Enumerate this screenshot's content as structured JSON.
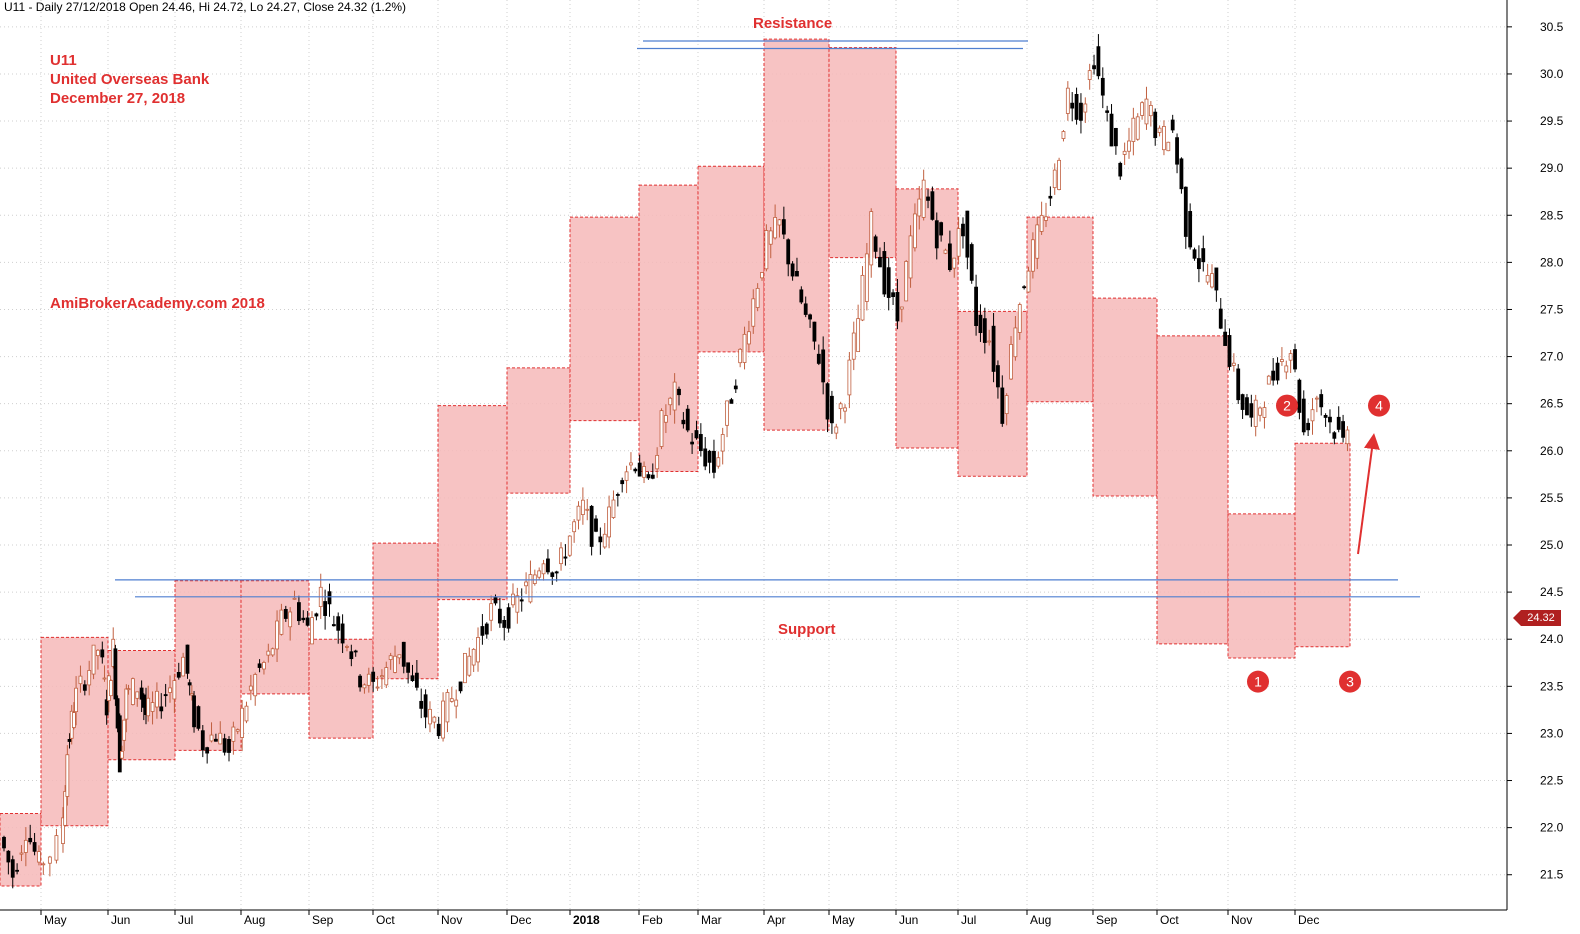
{
  "header": {
    "info": "U11 - Daily 27/12/2018 Open 24.46, Hi 24.72, Lo 24.27, Close 24.32 (1.2%)"
  },
  "title": {
    "symbol": "U11",
    "company": "United Overseas Bank",
    "date": "December 27, 2018"
  },
  "watermark": "AmiBrokerAcademy.com  2018",
  "labels": {
    "resistance": "Resistance",
    "support": "Support"
  },
  "last_price": "24.32",
  "markers": [
    {
      "num": "1",
      "month_pos": 19.2,
      "price": 23.55
    },
    {
      "num": "2",
      "month_pos": 19.8,
      "price": 26.48
    },
    {
      "num": "3",
      "month_pos": 20.6,
      "price": 23.55
    },
    {
      "num": "4",
      "month_pos": 21.0,
      "price": 26.48
    }
  ],
  "colors": {
    "box_fill": "#f6b9b9",
    "box_border": "#e03030",
    "line": "#4f7fd0",
    "up_candle": "#c06040",
    "down_candle": "#000000",
    "accent": "#e03030"
  },
  "chart_data": {
    "type": "candlestick",
    "ylim": [
      21.2,
      30.7
    ],
    "yticks": [
      "21.5",
      "22.0",
      "22.5",
      "23.0",
      "23.5",
      "24.0",
      "24.5",
      "25.0",
      "25.5",
      "26.0",
      "26.5",
      "27.0",
      "27.5",
      "28.0",
      "28.5",
      "29.0",
      "29.5",
      "30.0",
      "30.5"
    ],
    "xticks": [
      "May",
      "Jun",
      "Jul",
      "Aug",
      "Sep",
      "Oct",
      "Nov",
      "Dec",
      "2018",
      "Feb",
      "Mar",
      "Apr",
      "May",
      "Jun",
      "Jul",
      "Aug",
      "Sep",
      "Oct",
      "Nov",
      "Dec"
    ],
    "grid": true,
    "monthly_boxes": [
      {
        "month": "Apr 2017",
        "high": 22.15,
        "low": 21.38
      },
      {
        "month": "May 2017",
        "high": 24.02,
        "low": 22.02
      },
      {
        "month": "Jun 2017",
        "high": 23.88,
        "low": 22.72
      },
      {
        "month": "Jul 2017",
        "high": 24.62,
        "low": 22.82
      },
      {
        "month": "Aug 2017",
        "high": 24.62,
        "low": 23.42
      },
      {
        "month": "Sep 2017",
        "high": 24.0,
        "low": 22.95
      },
      {
        "month": "Oct 2017",
        "high": 25.02,
        "low": 23.58
      },
      {
        "month": "Nov 2017",
        "high": 26.48,
        "low": 24.42
      },
      {
        "month": "Dec 2017",
        "high": 26.88,
        "low": 25.55
      },
      {
        "month": "Jan 2018",
        "high": 28.48,
        "low": 26.32
      },
      {
        "month": "Feb 2018",
        "high": 28.82,
        "low": 25.78
      },
      {
        "month": "Mar 2018",
        "high": 29.02,
        "low": 27.05
      },
      {
        "month": "Apr 2018",
        "high": 30.37,
        "low": 26.22
      },
      {
        "month": "May 2018",
        "high": 30.28,
        "low": 28.05
      },
      {
        "month": "Jun 2018",
        "high": 28.78,
        "low": 26.03
      },
      {
        "month": "Jul 2018",
        "high": 27.48,
        "low": 25.73
      },
      {
        "month": "Aug 2018",
        "high": 28.48,
        "low": 26.52
      },
      {
        "month": "Sep 2018",
        "high": 27.62,
        "low": 25.52
      },
      {
        "month": "Oct 2018",
        "high": 27.22,
        "low": 23.95
      },
      {
        "month": "Nov 2018",
        "high": 25.33,
        "low": 23.8
      },
      {
        "month": "Dec 2018",
        "high": 26.08,
        "low": 23.92
      }
    ],
    "price_path": [
      [
        0.0,
        21.9
      ],
      [
        0.2,
        21.5
      ],
      [
        0.4,
        22.0
      ],
      [
        0.6,
        21.6
      ],
      [
        0.9,
        21.8
      ],
      [
        1.0,
        22.8
      ],
      [
        1.1,
        23.3
      ],
      [
        1.3,
        23.6
      ],
      [
        1.5,
        23.9
      ],
      [
        1.6,
        23.3
      ],
      [
        1.7,
        23.9
      ],
      [
        1.8,
        22.7
      ],
      [
        1.9,
        23.4
      ],
      [
        2.1,
        23.5
      ],
      [
        2.2,
        23.2
      ],
      [
        2.4,
        23.3
      ],
      [
        2.6,
        23.5
      ],
      [
        2.8,
        23.8
      ],
      [
        2.9,
        23.3
      ],
      [
        3.1,
        22.9
      ],
      [
        3.3,
        23.0
      ],
      [
        3.5,
        22.8
      ],
      [
        3.7,
        23.2
      ],
      [
        3.9,
        23.6
      ],
      [
        4.1,
        23.8
      ],
      [
        4.3,
        24.2
      ],
      [
        4.5,
        24.4
      ],
      [
        4.7,
        24.1
      ],
      [
        4.9,
        24.5
      ],
      [
        5.1,
        24.2
      ],
      [
        5.3,
        24.0
      ],
      [
        5.5,
        23.6
      ],
      [
        5.7,
        23.5
      ],
      [
        5.9,
        23.7
      ],
      [
        6.1,
        23.9
      ],
      [
        6.3,
        23.5
      ],
      [
        6.5,
        23.2
      ],
      [
        6.7,
        23.1
      ],
      [
        6.9,
        23.4
      ],
      [
        7.1,
        23.7
      ],
      [
        7.3,
        24.0
      ],
      [
        7.5,
        24.3
      ],
      [
        7.7,
        24.2
      ],
      [
        7.9,
        24.4
      ],
      [
        8.1,
        24.6
      ],
      [
        8.3,
        24.9
      ],
      [
        8.5,
        24.7
      ],
      [
        8.7,
        25.1
      ],
      [
        8.9,
        25.4
      ],
      [
        9.1,
        25.0
      ],
      [
        9.3,
        25.3
      ],
      [
        9.5,
        25.8
      ],
      [
        9.7,
        25.9
      ],
      [
        9.9,
        25.6
      ],
      [
        10.1,
        26.3
      ],
      [
        10.3,
        26.6
      ],
      [
        10.5,
        26.2
      ],
      [
        10.7,
        26.0
      ],
      [
        10.9,
        25.8
      ],
      [
        11.1,
        26.4
      ],
      [
        11.3,
        27.0
      ],
      [
        11.5,
        27.6
      ],
      [
        11.7,
        28.2
      ],
      [
        11.9,
        28.4
      ],
      [
        12.1,
        27.9
      ],
      [
        12.3,
        27.4
      ],
      [
        12.5,
        27.0
      ],
      [
        12.7,
        26.2
      ],
      [
        12.9,
        26.6
      ],
      [
        13.1,
        27.4
      ],
      [
        13.3,
        28.4
      ],
      [
        13.5,
        27.8
      ],
      [
        13.7,
        27.4
      ],
      [
        13.9,
        28.2
      ],
      [
        14.1,
        28.8
      ],
      [
        14.3,
        28.3
      ],
      [
        14.5,
        28.0
      ],
      [
        14.7,
        28.4
      ],
      [
        14.9,
        27.4
      ],
      [
        15.1,
        27.2
      ],
      [
        15.3,
        26.4
      ],
      [
        15.5,
        27.4
      ],
      [
        15.7,
        28.0
      ],
      [
        15.9,
        28.4
      ],
      [
        16.1,
        28.9
      ],
      [
        16.3,
        29.8
      ],
      [
        16.5,
        29.6
      ],
      [
        16.7,
        30.2
      ],
      [
        16.9,
        29.5
      ],
      [
        17.1,
        29.0
      ],
      [
        17.3,
        29.4
      ],
      [
        17.5,
        29.7
      ],
      [
        17.7,
        29.3
      ],
      [
        17.9,
        29.4
      ],
      [
        18.1,
        28.4
      ],
      [
        18.3,
        28.0
      ],
      [
        18.5,
        27.8
      ],
      [
        18.7,
        27.2
      ],
      [
        18.9,
        26.6
      ],
      [
        19.1,
        26.3
      ],
      [
        19.3,
        26.6
      ],
      [
        19.5,
        26.9
      ],
      [
        19.7,
        27.1
      ],
      [
        19.9,
        26.2
      ],
      [
        20.1,
        26.6
      ],
      [
        20.3,
        26.3
      ],
      [
        20.5,
        26.1
      ],
      [
        20.7,
        26.8
      ],
      [
        20.9,
        27.2
      ],
      [
        21.1,
        26.6
      ],
      [
        21.3,
        28.1
      ],
      [
        21.5,
        27.5
      ],
      [
        21.7,
        27.2
      ],
      [
        21.9,
        26.6
      ],
      [
        22.1,
        26.9
      ],
      [
        22.3,
        26.4
      ],
      [
        22.5,
        26.0
      ],
      [
        22.7,
        26.3
      ],
      [
        22.9,
        25.9
      ],
      [
        23.1,
        26.5
      ],
      [
        23.3,
        27.4
      ],
      [
        23.5,
        26.7
      ],
      [
        23.7,
        26.4
      ],
      [
        23.9,
        25.9
      ],
      [
        24.1,
        25.2
      ],
      [
        24.3,
        25.0
      ],
      [
        24.5,
        24.6
      ],
      [
        24.7,
        24.1
      ],
      [
        24.9,
        24.3
      ],
      [
        25.1,
        24.6
      ],
      [
        25.3,
        24.2
      ],
      [
        25.5,
        23.9
      ],
      [
        25.7,
        24.6
      ],
      [
        25.9,
        25.0
      ],
      [
        26.1,
        25.8
      ],
      [
        26.3,
        24.8
      ],
      [
        26.5,
        24.5
      ],
      [
        26.7,
        24.9
      ],
      [
        26.9,
        24.3
      ],
      [
        27.1,
        24.1
      ],
      [
        27.3,
        24.5
      ],
      [
        27.4,
        24.3
      ]
    ],
    "support_lines": [
      {
        "price": 24.45,
        "from_month": 1.4,
        "to_month": 20.7
      },
      {
        "price": 24.63,
        "from_month": 1.1,
        "to_month": 20.4
      }
    ],
    "resistance_lines": [
      {
        "price": 30.35,
        "from_month": 10.1,
        "to_month": 16.0
      },
      {
        "price": 30.27,
        "from_month": 10.0,
        "to_month": 15.9
      }
    ]
  }
}
